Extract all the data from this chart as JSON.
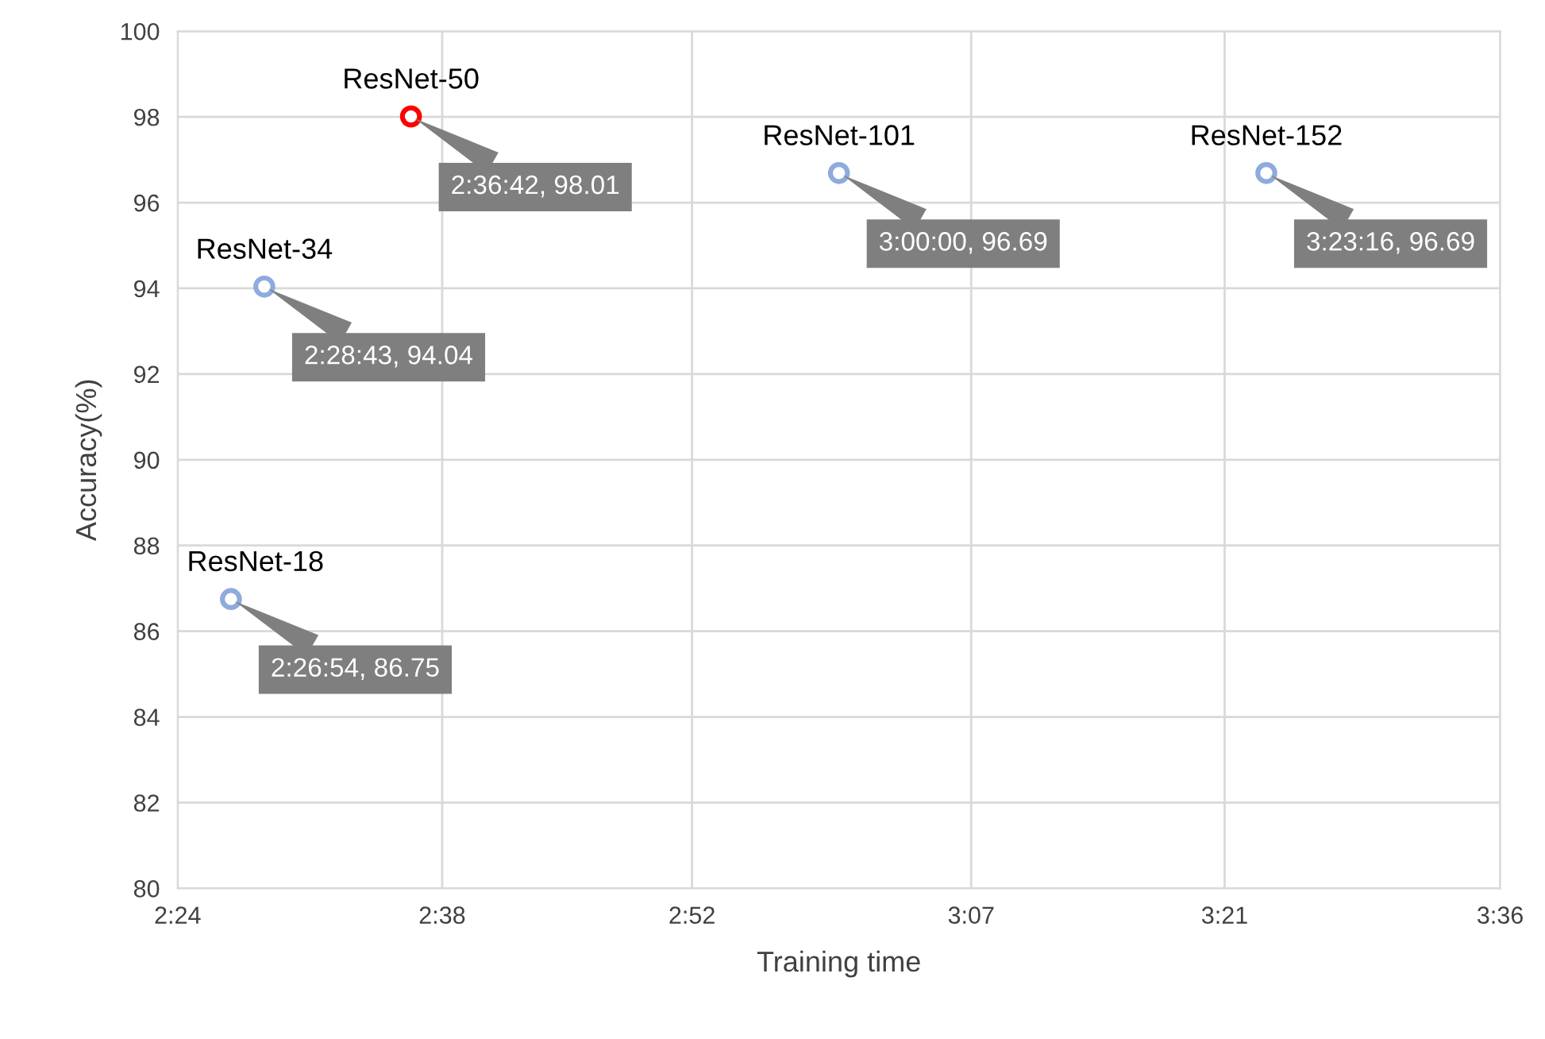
{
  "chart_data": {
    "type": "scatter",
    "xlabel": "Training time",
    "ylabel": "Accuracy(%)",
    "xlim": [
      2.4,
      3.6
    ],
    "xticks": [
      {
        "value": 2.4,
        "label": "2:24"
      },
      {
        "value": 2.64,
        "label": "2:38"
      },
      {
        "value": 2.8667,
        "label": "2:52"
      },
      {
        "value": 3.12,
        "label": "3:07"
      },
      {
        "value": 3.35,
        "label": "3:21"
      },
      {
        "value": 3.6,
        "label": "3:36"
      }
    ],
    "ylim": [
      80,
      100
    ],
    "yticks": [
      80,
      82,
      84,
      86,
      88,
      90,
      92,
      94,
      96,
      98,
      100
    ],
    "grid": true,
    "marker": "circle",
    "legend": false,
    "series": [
      {
        "name": "ResNet-18",
        "color": "#8faadc",
        "x": [
          2.448333
        ],
        "values": [
          86.75
        ],
        "value_labels": [
          "2:26:54, 86.75"
        ]
      },
      {
        "name": "ResNet-34",
        "color": "#8faadc",
        "x": [
          2.478611
        ],
        "values": [
          94.04
        ],
        "value_labels": [
          "2:28:43, 94.04"
        ]
      },
      {
        "name": "ResNet-50",
        "color": "#ff0000",
        "x": [
          2.611667
        ],
        "values": [
          98.01
        ],
        "value_labels": [
          "2:36:42, 98.01"
        ]
      },
      {
        "name": "ResNet-101",
        "color": "#8faadc",
        "x": [
          3.0
        ],
        "values": [
          96.69
        ],
        "value_labels": [
          "3:00:00, 96.69"
        ]
      },
      {
        "name": "ResNet-152",
        "color": "#8faadc",
        "x": [
          3.387778
        ],
        "values": [
          96.69
        ],
        "value_labels": [
          "3:23:16, 96.69"
        ]
      }
    ]
  }
}
